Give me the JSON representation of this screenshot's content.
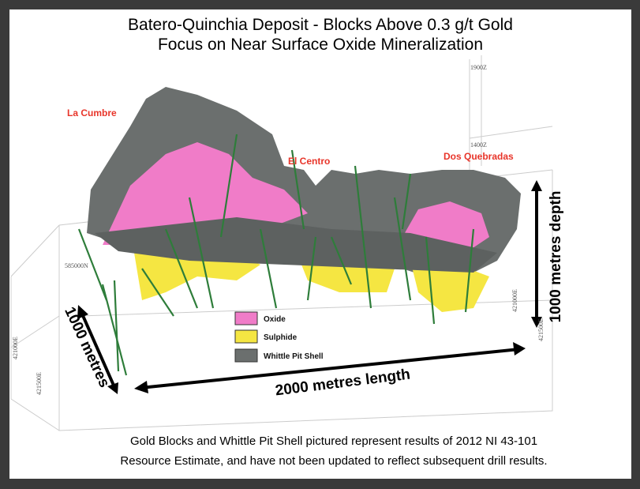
{
  "header": {
    "title_line1": "Batero-Quinchia Deposit - Blocks Above 0.3 g/t Gold",
    "title_line2": "Focus on Near Surface Oxide Mineralization"
  },
  "zones": [
    "La Cumbre",
    "El Centro",
    "Dos Quebradas"
  ],
  "legend": [
    "Oxide",
    "Sulphide",
    "Whittle Pit Shell"
  ],
  "dimensions": {
    "width": "1000 metres",
    "length": "2000 metres length",
    "depth": "1000 metres depth"
  },
  "coordinates": {
    "elev_top": "1900Z",
    "elev_mid": "1400Z",
    "northing": "585000N",
    "easting_right_1": "421000E",
    "easting_right_2": "421500E",
    "easting_left_1": "421000E",
    "easting_left_2": "421500E"
  },
  "caption": {
    "line1": "Gold Blocks and Whittle Pit Shell  pictured represent results of 2012 NI 43-101",
    "line2": "Resource Estimate, and have not been updated to reflect subsequent drill results."
  }
}
